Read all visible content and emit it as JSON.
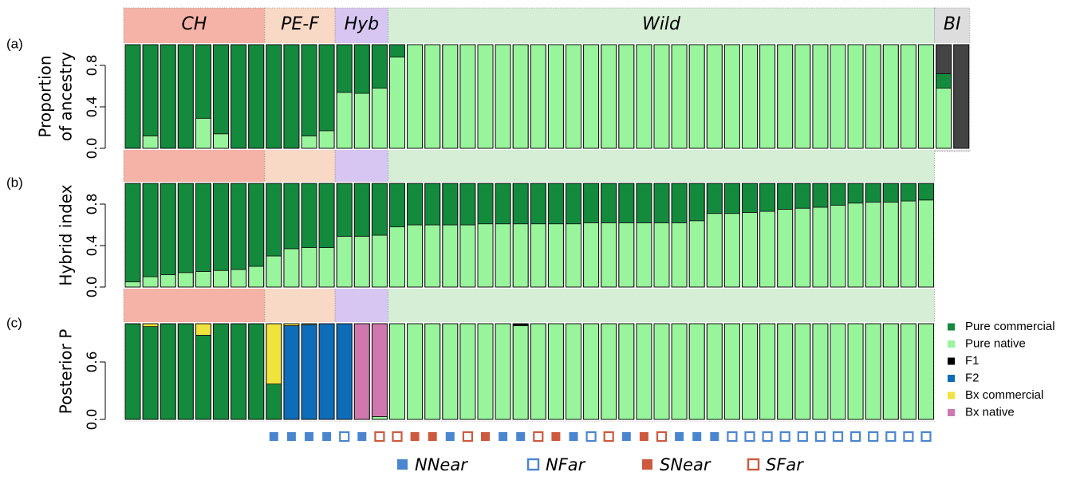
{
  "groups": [
    {
      "label": "CH",
      "count": 8,
      "color": "#f5b2a6"
    },
    {
      "label": "PE-F",
      "count": 4,
      "color": "#f8d9c5"
    },
    {
      "label": "Hyb",
      "count": 3,
      "color": "#d6c6f1"
    },
    {
      "label": "Wild",
      "count": 31,
      "color": "#d5eed5"
    },
    {
      "label": "BI",
      "count": 2,
      "color": "#dddddd"
    }
  ],
  "chart_data": [
    {
      "type": "stacked-bar",
      "panel": "(a)",
      "ylabel": [
        "Proportion",
        "of ancestry"
      ],
      "ylim": [
        0,
        1
      ],
      "yticks": [
        {
          "value": 0,
          "label": "0.0"
        },
        0.4,
        0.8
      ],
      "series": [
        {
          "color": "#98f59b",
          "values": [
            0,
            0.12,
            0,
            0,
            0.29,
            0.14,
            0,
            0,
            0,
            0,
            0.12,
            0.17,
            0.54,
            0.53,
            0.58,
            0.88,
            1,
            1,
            1,
            1,
            1,
            1,
            1,
            1,
            1,
            1,
            1,
            1,
            1,
            1,
            1,
            1,
            1,
            1,
            1,
            1,
            1,
            1,
            1,
            1,
            1,
            1,
            1,
            1,
            1,
            1,
            0.58,
            0
          ]
        },
        {
          "color": "#138a3c",
          "values": [
            1,
            0.88,
            1,
            1,
            0.71,
            0.86,
            1,
            1,
            1,
            1,
            0.88,
            0.83,
            0.46,
            0.47,
            0.42,
            0.12,
            0,
            0,
            0,
            0,
            0,
            0,
            0,
            0,
            0,
            0,
            0,
            0,
            0,
            0,
            0,
            0,
            0,
            0,
            0,
            0,
            0,
            0,
            0,
            0,
            0,
            0,
            0,
            0,
            0,
            0,
            0.14,
            0
          ]
        },
        {
          "color": "#444444",
          "values": [
            0,
            0,
            0,
            0,
            0,
            0,
            0,
            0,
            0,
            0,
            0,
            0,
            0,
            0,
            0,
            0,
            0,
            0,
            0,
            0,
            0,
            0,
            0,
            0,
            0,
            0,
            0,
            0,
            0,
            0,
            0,
            0,
            0,
            0,
            0,
            0,
            0,
            0,
            0,
            0,
            0,
            0,
            0,
            0,
            0,
            0,
            0.28,
            1
          ]
        }
      ]
    },
    {
      "type": "stacked-bar",
      "panel": "(b)",
      "ylabel": [
        "Hybrid index"
      ],
      "ylim": [
        0,
        1
      ],
      "yticks": [
        {
          "value": 0,
          "label": "0.0"
        },
        0.4,
        0.8
      ],
      "series": [
        {
          "color": "#98f59b",
          "values": [
            0.05,
            0.1,
            0.12,
            0.14,
            0.15,
            0.16,
            0.17,
            0.2,
            0.3,
            0.37,
            0.38,
            0.38,
            0.49,
            0.49,
            0.5,
            0.58,
            0.6,
            0.6,
            0.6,
            0.6,
            0.61,
            0.61,
            0.61,
            0.61,
            0.61,
            0.61,
            0.62,
            0.62,
            0.62,
            0.62,
            0.62,
            0.62,
            0.64,
            0.71,
            0.71,
            0.72,
            0.73,
            0.75,
            0.76,
            0.77,
            0.79,
            0.81,
            0.82,
            0.82,
            0.83,
            0.84
          ]
        },
        {
          "color": "#138a3c",
          "values": [
            0.95,
            0.9,
            0.88,
            0.86,
            0.85,
            0.84,
            0.83,
            0.8,
            0.7,
            0.63,
            0.62,
            0.62,
            0.51,
            0.51,
            0.5,
            0.42,
            0.4,
            0.4,
            0.4,
            0.4,
            0.39,
            0.39,
            0.39,
            0.39,
            0.39,
            0.39,
            0.38,
            0.38,
            0.38,
            0.38,
            0.38,
            0.38,
            0.36,
            0.29,
            0.29,
            0.28,
            0.27,
            0.25,
            0.24,
            0.23,
            0.21,
            0.19,
            0.18,
            0.18,
            0.17,
            0.16
          ]
        }
      ]
    },
    {
      "type": "stacked-bar",
      "panel": "(c)",
      "ylabel": [
        "Posterior P"
      ],
      "ylim": [
        0,
        1
      ],
      "yticks": [
        {
          "value": 0,
          "label": "0.0"
        },
        0.6
      ],
      "legend": "right",
      "series": [
        {
          "name": "Pure commercial",
          "color": "#138a3c",
          "values": [
            1,
            0.97,
            1,
            1,
            0.88,
            1,
            1,
            1,
            0.37,
            0,
            0,
            0,
            0,
            0,
            0,
            0,
            0,
            0,
            0,
            0,
            0,
            0,
            0,
            0,
            0,
            0,
            0,
            0,
            0,
            0,
            0,
            0,
            0,
            0,
            0,
            0,
            0,
            0,
            0,
            0,
            0,
            0,
            0,
            0,
            0,
            0
          ]
        },
        {
          "name": "Pure native",
          "color": "#98f59b",
          "values": [
            0,
            0,
            0,
            0,
            0,
            0,
            0,
            0,
            0,
            0,
            0,
            0,
            0,
            0,
            0.03,
            1,
            1,
            1,
            1,
            1,
            1,
            1,
            0.98,
            1,
            1,
            1,
            1,
            1,
            1,
            1,
            1,
            1,
            1,
            1,
            1,
            1,
            1,
            1,
            1,
            1,
            1,
            1,
            1,
            1,
            1,
            1
          ]
        },
        {
          "name": "F1",
          "color": "#000000",
          "values": [
            0,
            0,
            0,
            0,
            0,
            0,
            0,
            0,
            0,
            0,
            0,
            0,
            0,
            0,
            0,
            0,
            0,
            0,
            0,
            0,
            0,
            0,
            0.02,
            0,
            0,
            0,
            0,
            0,
            0,
            0,
            0,
            0,
            0,
            0,
            0,
            0,
            0,
            0,
            0,
            0,
            0,
            0,
            0,
            0,
            0,
            0
          ]
        },
        {
          "name": "F2",
          "color": "#0e6db8",
          "values": [
            0,
            0,
            0,
            0,
            0,
            0,
            0,
            0,
            0,
            0.98,
            0.99,
            1,
            1,
            0,
            0,
            0,
            0,
            0,
            0,
            0,
            0,
            0,
            0,
            0,
            0,
            0,
            0,
            0,
            0,
            0,
            0,
            0,
            0,
            0,
            0,
            0,
            0,
            0,
            0,
            0,
            0,
            0,
            0,
            0,
            0,
            0
          ]
        },
        {
          "name": "Bx commercial",
          "color": "#f0e33c",
          "values": [
            0,
            0.03,
            0,
            0,
            0.12,
            0,
            0,
            0,
            0.63,
            0.02,
            0.01,
            0,
            0,
            0,
            0,
            0,
            0,
            0,
            0,
            0,
            0,
            0,
            0,
            0,
            0,
            0,
            0,
            0,
            0,
            0,
            0,
            0,
            0,
            0,
            0,
            0,
            0,
            0,
            0,
            0,
            0,
            0,
            0,
            0,
            0,
            0
          ]
        },
        {
          "name": "Bx native",
          "color": "#cf78ae",
          "values": [
            0,
            0,
            0,
            0,
            0,
            0,
            0,
            0,
            0,
            0,
            0,
            0,
            0,
            1,
            0.97,
            0,
            0,
            0,
            0,
            0,
            0,
            0,
            0,
            0,
            0,
            0,
            0,
            0,
            0,
            0,
            0,
            0,
            0,
            0,
            0,
            0,
            0,
            0,
            0,
            0,
            0,
            0,
            0,
            0,
            0,
            0
          ]
        }
      ]
    }
  ],
  "sites": {
    "legend": [
      {
        "label": "NNear",
        "color": "#4a86cf",
        "filled": true
      },
      {
        "label": "NFar",
        "color": "#4a86cf",
        "filled": false
      },
      {
        "label": "SNear",
        "color": "#cd5a3e",
        "filled": true
      },
      {
        "label": "SFar",
        "color": "#cd5a3e",
        "filled": false
      }
    ],
    "codes": [
      "NNear",
      "NNear",
      "NNear",
      "NNear",
      "NFar",
      "NNear",
      "SFar",
      "SFar",
      "SNear",
      "SNear",
      "NNear",
      "SFar",
      "SNear",
      "NNear",
      "NNear",
      "SFar",
      "SNear",
      "NNear",
      "NFar",
      "SFar",
      "NNear",
      "SNear",
      "SFar",
      "NNear",
      "NNear",
      "NNear",
      "NFar",
      "NFar",
      "NFar",
      "NFar",
      "NFar",
      "NFar",
      "NFar",
      "NFar",
      "NFar",
      "NFar",
      "NFar",
      "NFar"
    ]
  }
}
